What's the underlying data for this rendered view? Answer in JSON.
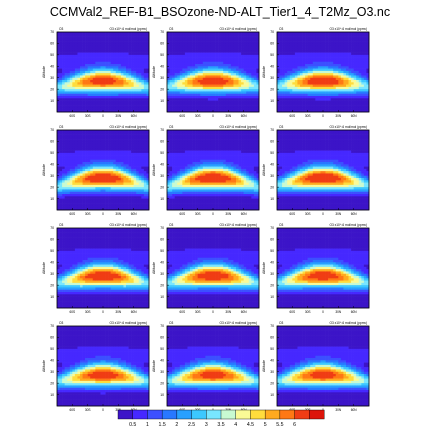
{
  "page": {
    "title": "CCMVal2_REF-B1_BSOzone-ND-ALT_Tier1_4_T2Mz_O3.nc"
  },
  "chart_data": {
    "type": "heatmap",
    "title": "CCMVal2_REF-B1_BSOzone-ND-ALT_Tier1_4_T2Mz_O3.nc",
    "layout": "4x3 panel grid",
    "n_panels": 12,
    "panel_header_left": "O3",
    "panel_header_right": "O3 x10^-6 mol/mol (ppmv)",
    "ylabel": "Altitude",
    "ylim": [
      0,
      70
    ],
    "y_ticks": [
      10,
      20,
      30,
      40,
      50,
      60,
      70
    ],
    "xlim": [
      -90,
      90
    ],
    "x_ticks": [
      "60S",
      "30S",
      "0",
      "30N",
      "60N"
    ],
    "colorbar": {
      "levels": [
        "0.5",
        "1",
        "1.5",
        "2",
        "2.5",
        "3",
        "3.5",
        "4",
        "4.5",
        "5",
        "5.5",
        "6"
      ],
      "colors": [
        "#3c14c8",
        "#4628ff",
        "#3c50ff",
        "#2878ff",
        "#28a0ff",
        "#3cc8ff",
        "#78e6ff",
        "#c8fad2",
        "#fafa96",
        "#ffdc3c",
        "#ffaa1e",
        "#ff7814",
        "#f03c14",
        "#dc140a"
      ]
    },
    "panels": [
      {
        "peak_alt_eq": 27,
        "peak_alt_pole": 21,
        "bulge": 0.0
      },
      {
        "peak_alt_eq": 27,
        "peak_alt_pole": 22,
        "bulge": 0.2
      },
      {
        "peak_alt_eq": 27,
        "peak_alt_pole": 22,
        "bulge": 0.3
      },
      {
        "peak_alt_eq": 28,
        "peak_alt_pole": 20,
        "bulge": 0.4
      },
      {
        "peak_alt_eq": 28,
        "peak_alt_pole": 20,
        "bulge": 0.5
      },
      {
        "peak_alt_eq": 28,
        "peak_alt_pole": 21,
        "bulge": 0.5
      },
      {
        "peak_alt_eq": 28,
        "peak_alt_pole": 21,
        "bulge": 0.4
      },
      {
        "peak_alt_eq": 28,
        "peak_alt_pole": 21,
        "bulge": 0.3
      },
      {
        "peak_alt_eq": 28,
        "peak_alt_pole": 21,
        "bulge": 0.2
      },
      {
        "peak_alt_eq": 27,
        "peak_alt_pole": 21,
        "bulge": 0.1
      },
      {
        "peak_alt_eq": 27,
        "peak_alt_pole": 21,
        "bulge": 0.0
      },
      {
        "peak_alt_eq": 27,
        "peak_alt_pole": 21,
        "bulge": 0.0
      }
    ]
  }
}
